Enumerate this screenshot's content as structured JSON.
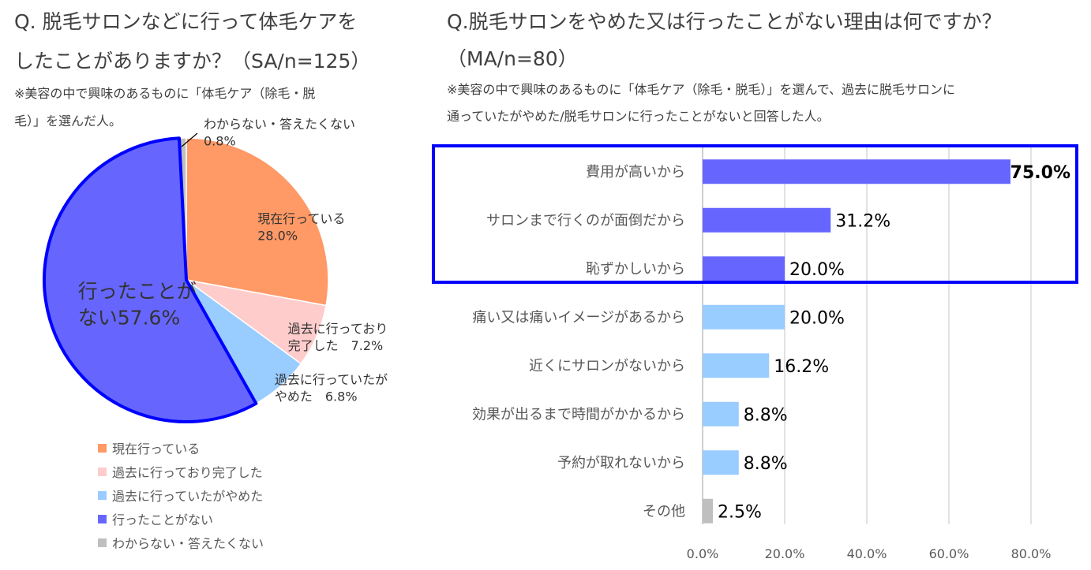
{
  "left": {
    "title_line1": "Q. 脱毛サロンなどに行って体毛ケアを",
    "title_line2": "したことがありますか？（SA/n=125）",
    "note_line1": "※美容の中で興味のあるものに「体毛ケア（除毛・脱",
    "note_line2": "毛）」を選んだ人。"
  },
  "right": {
    "title_line1": "Q.脱毛サロンをやめた又は行ったことがない理由は何ですか？",
    "title_line2": "（MA/n=80）",
    "note_line1": "※美容の中で興味のあるものに「体毛ケア（除毛・脱毛）」を選んで、過去に脱毛サロンに",
    "note_line2": "通っていたがやめた/脱毛サロンに行ったことがないと回答した人。"
  },
  "chart_data": [
    {
      "type": "pie",
      "slices": [
        {
          "name": "現在行っている",
          "value": 28.0,
          "color": "#FF9966",
          "label_lines": [
            "現在行っている",
            "28.0%"
          ]
        },
        {
          "name": "過去に行っており完了した",
          "value": 7.2,
          "color": "#FFCCCC",
          "label_lines": [
            "過去に行っており",
            "完了した　7.2%"
          ]
        },
        {
          "name": "過去に行っていたがやめた",
          "value": 6.8,
          "color": "#99CCFF",
          "label_lines": [
            "過去に行っていたが",
            "やめた　6.8%"
          ]
        },
        {
          "name": "行ったことがない",
          "value": 57.6,
          "color": "#6666FF",
          "label_lines": [
            "行ったことが",
            "ない57.6%"
          ]
        },
        {
          "name": "わからない・答えたくない",
          "value": 0.8,
          "color": "#BFBFBF",
          "label_lines": [
            "わからない・答えたくない",
            "0.8%"
          ]
        }
      ],
      "highlight_slice": "行ったことがない",
      "legend": [
        "現在行っている",
        "過去に行っており完了した",
        "過去に行っていたがやめた",
        "行ったことがない",
        "わからない・答えたくない"
      ],
      "legend_position": "bottom"
    },
    {
      "type": "bar",
      "orientation": "horizontal",
      "categories": [
        "費用が高いから",
        "サロンまで行くのが面倒だから",
        "恥ずかしいから",
        "痛い又は痛いイメージがあるから",
        "近くにサロンがないから",
        "効果が出るまで時間がかかるから",
        "予約が取れないから",
        "その他"
      ],
      "values": [
        75.0,
        31.2,
        20.0,
        20.0,
        16.2,
        8.8,
        8.8,
        2.5
      ],
      "value_labels": [
        "75.0%",
        "31.2%",
        "20.0%",
        "20.0%",
        "16.2%",
        "8.8%",
        "8.8%",
        "2.5%"
      ],
      "colors": [
        "#6666FF",
        "#6666FF",
        "#6666FF",
        "#99CCFF",
        "#99CCFF",
        "#99CCFF",
        "#99CCFF",
        "#BFBFBF"
      ],
      "highlighted_categories": [
        "費用が高いから",
        "サロンまで行くのが面倒だから",
        "恥ずかしいから"
      ],
      "xlim": [
        0,
        80
      ],
      "xticks": [
        0,
        20,
        40,
        60,
        80
      ],
      "xtick_labels": [
        "0.0%",
        "20.0%",
        "40.0%",
        "60.0%",
        "80.0%"
      ],
      "grid": true,
      "highlight_border_color": "#0000FF"
    }
  ]
}
